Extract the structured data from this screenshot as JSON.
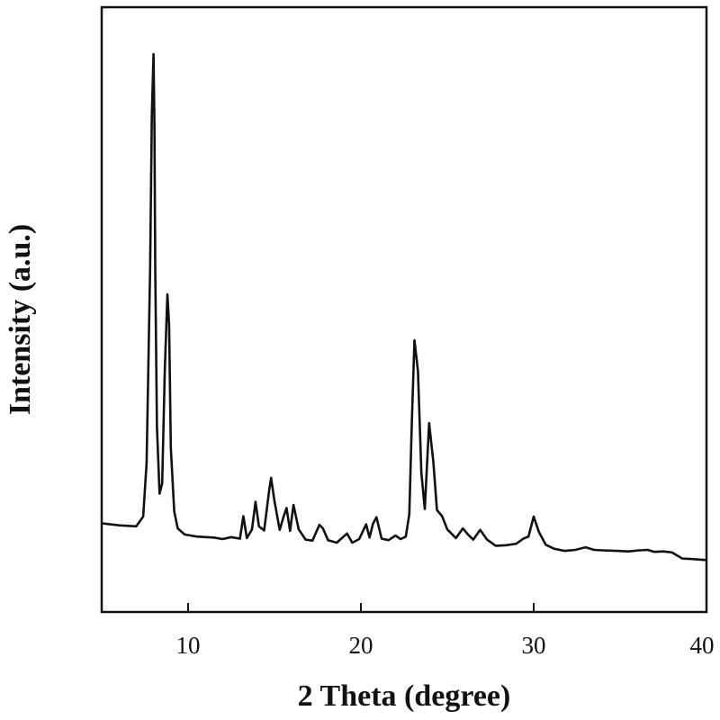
{
  "chart_data": {
    "type": "line",
    "title": "",
    "xlabel": "2 Theta (degree)",
    "ylabel": "Intensity (a.u.)",
    "xlim": [
      5,
      40
    ],
    "ylim": [
      0,
      100
    ],
    "x_ticks": [
      10,
      20,
      30,
      40
    ],
    "x_tick_labels": [
      "10",
      "20",
      "30",
      "40"
    ],
    "y_ticks_shown": false,
    "grid": false,
    "legend": "none",
    "series": [
      {
        "color": "#111111",
        "x": [
          5.0,
          6.0,
          7.0,
          7.4,
          7.6,
          7.8,
          7.9,
          8.0,
          8.05,
          8.1,
          8.2,
          8.35,
          8.5,
          8.65,
          8.8,
          8.9,
          9.0,
          9.2,
          9.4,
          9.8,
          10.5,
          11.5,
          12.0,
          12.5,
          13.0,
          13.2,
          13.4,
          13.7,
          13.9,
          14.1,
          14.4,
          14.7,
          14.8,
          15.0,
          15.3,
          15.5,
          15.7,
          15.9,
          16.1,
          16.4,
          16.8,
          17.2,
          17.6,
          17.8,
          18.1,
          18.6,
          19.2,
          19.5,
          19.9,
          20.3,
          20.5,
          20.7,
          20.9,
          21.2,
          21.6,
          22.0,
          22.3,
          22.6,
          22.8,
          22.95,
          23.1,
          23.3,
          23.5,
          23.7,
          23.95,
          24.2,
          24.4,
          24.7,
          25.0,
          25.5,
          25.9,
          26.2,
          26.5,
          26.9,
          27.3,
          27.8,
          28.4,
          29.0,
          29.4,
          29.7,
          30.0,
          30.3,
          30.7,
          31.2,
          31.8,
          32.4,
          33.0,
          33.5,
          34.0,
          34.8,
          35.5,
          36.1,
          36.6,
          37.0,
          37.5,
          38.0,
          38.6,
          39.2,
          40.0
        ],
        "y": [
          8.2,
          7.8,
          7.6,
          9.5,
          20.0,
          58.0,
          88.0,
          100.0,
          86.0,
          58.0,
          27.0,
          14.0,
          16.0,
          38.0,
          53.0,
          47.0,
          23.0,
          10.5,
          7.2,
          6.0,
          5.6,
          5.4,
          5.1,
          5.5,
          5.2,
          9.6,
          5.3,
          7.0,
          12.4,
          7.6,
          6.8,
          14.8,
          17.1,
          12.5,
          6.9,
          9.2,
          11.2,
          6.7,
          11.8,
          7.0,
          5.0,
          4.8,
          7.9,
          7.2,
          4.9,
          4.4,
          6.2,
          4.4,
          5.1,
          8.0,
          5.4,
          8.1,
          9.4,
          5.2,
          4.9,
          5.8,
          5.1,
          5.6,
          10.0,
          28.0,
          44.0,
          38.0,
          18.0,
          11.0,
          27.8,
          20.0,
          10.8,
          9.6,
          7.0,
          5.3,
          7.2,
          6.0,
          5.0,
          6.9,
          5.0,
          3.8,
          3.9,
          4.2,
          5.2,
          5.6,
          9.5,
          6.5,
          4.0,
          3.2,
          2.8,
          3.0,
          3.5,
          3.0,
          2.9,
          2.8,
          2.7,
          2.9,
          3.0,
          2.6,
          2.7,
          2.5,
          1.3,
          1.2,
          1.0
        ]
      }
    ]
  }
}
